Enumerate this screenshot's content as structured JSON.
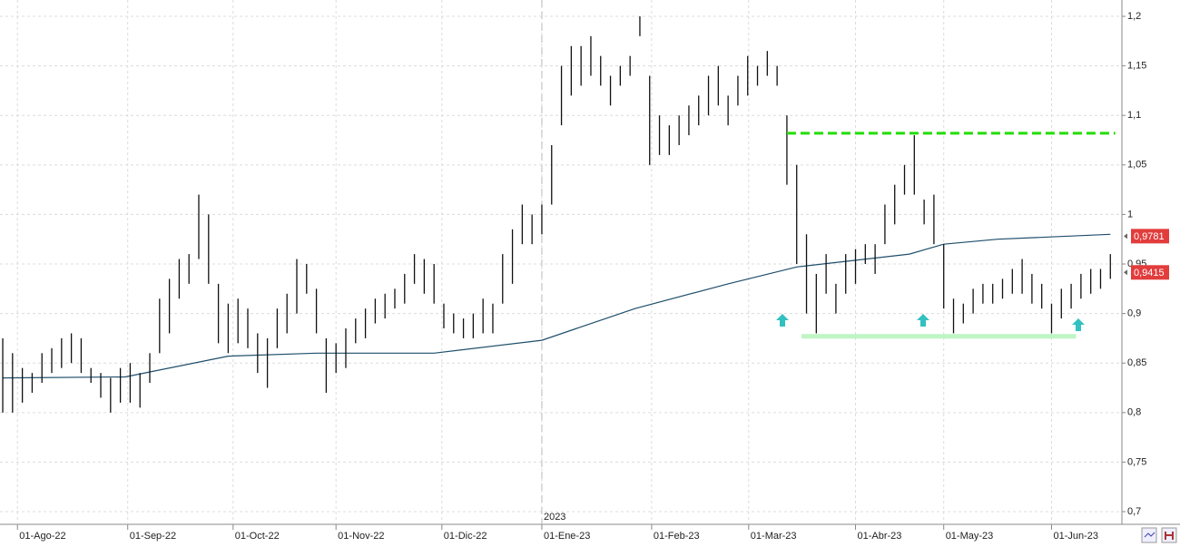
{
  "chart_data": {
    "type": "ohlc",
    "xlim": [
      -0.56,
      227.8
    ],
    "ylim": [
      0.6872,
      1.2165
    ],
    "yticks": [
      {
        "value": 0.7,
        "label": "0,7"
      },
      {
        "value": 0.75,
        "label": "0,75"
      },
      {
        "value": 0.8,
        "label": "0,8"
      },
      {
        "value": 0.85,
        "label": "0,85"
      },
      {
        "value": 0.9,
        "label": "0,9"
      },
      {
        "value": 0.95,
        "label": "0,95"
      },
      {
        "value": 1,
        "label": "1"
      },
      {
        "value": 1.05,
        "label": "1,05"
      },
      {
        "value": 1.1,
        "label": "1,1"
      },
      {
        "value": 1.15,
        "label": "1,15"
      },
      {
        "value": 1.2,
        "label": "1,2"
      }
    ],
    "xticks": [
      {
        "value": 3,
        "label": "01-Ago-22"
      },
      {
        "value": 25.5,
        "label": "01-Sep-22"
      },
      {
        "value": 47,
        "label": "01-Oct-22"
      },
      {
        "value": 68,
        "label": "01-Nov-22"
      },
      {
        "value": 89.6,
        "label": "01-Dic-22"
      },
      {
        "value": 110,
        "label": "01-Ene-23"
      },
      {
        "value": 132.4,
        "label": "01-Feb-23"
      },
      {
        "value": 152.2,
        "label": "01-Mar-23"
      },
      {
        "value": 174,
        "label": "01-Abr-23"
      },
      {
        "value": 192,
        "label": "01-May-23"
      },
      {
        "value": 214,
        "label": "01-Jun-23"
      }
    ],
    "year_marker": {
      "value": 110,
      "label": "2023"
    },
    "grid": true,
    "bar_color": "#111111",
    "x": [
      0,
      2,
      4,
      6,
      8,
      10,
      12,
      14,
      16,
      18,
      20,
      22,
      24,
      26,
      28,
      30,
      32,
      34,
      36,
      38,
      40,
      42,
      44,
      46,
      48,
      50,
      52,
      54,
      56,
      58,
      60,
      62,
      64,
      66,
      68,
      70,
      72,
      74,
      76,
      78,
      80,
      82,
      84,
      86,
      88,
      90,
      92,
      94,
      96,
      98,
      100,
      102,
      104,
      106,
      108,
      110,
      112,
      114,
      116,
      118,
      120,
      122,
      124,
      126,
      128,
      130,
      132,
      134,
      136,
      138,
      140,
      142,
      144,
      146,
      148,
      150,
      152,
      154,
      156,
      158,
      160,
      162,
      164,
      166,
      168,
      170,
      172,
      174,
      176,
      178,
      180,
      182,
      184,
      186,
      188,
      190,
      192,
      194,
      196,
      198,
      200,
      202,
      204,
      206,
      208,
      210,
      212,
      214,
      216,
      218,
      220,
      222,
      224,
      226
    ],
    "high": [
      0.875,
      0.86,
      0.845,
      0.84,
      0.86,
      0.865,
      0.875,
      0.88,
      0.875,
      0.845,
      0.84,
      0.835,
      0.845,
      0.85,
      0.84,
      0.86,
      0.915,
      0.935,
      0.955,
      0.96,
      1.02,
      1.0,
      0.93,
      0.91,
      0.915,
      0.905,
      0.88,
      0.875,
      0.905,
      0.92,
      0.955,
      0.95,
      0.925,
      0.875,
      0.87,
      0.885,
      0.895,
      0.905,
      0.915,
      0.92,
      0.925,
      0.94,
      0.96,
      0.955,
      0.95,
      0.91,
      0.9,
      0.895,
      0.9,
      0.915,
      0.91,
      0.96,
      0.985,
      1.01,
      1.0,
      1.01,
      1.07,
      1.15,
      1.17,
      1.17,
      1.18,
      1.16,
      1.14,
      1.15,
      1.16,
      1.2,
      1.14,
      1.1,
      1.09,
      1.1,
      1.11,
      1.12,
      1.14,
      1.15,
      1.12,
      1.14,
      1.16,
      1.15,
      1.165,
      1.15,
      1.1,
      1.05,
      0.98,
      0.94,
      0.96,
      0.93,
      0.96,
      0.965,
      0.97,
      0.97,
      1.01,
      1.03,
      1.05,
      1.08,
      1.015,
      1.02,
      0.97,
      0.915,
      0.91,
      0.925,
      0.93,
      0.93,
      0.935,
      0.945,
      0.955,
      0.94,
      0.93,
      0.91,
      0.925,
      0.93,
      0.94,
      0.945,
      0.945,
      0.96
    ],
    "low": [
      0.8,
      0.8,
      0.81,
      0.82,
      0.83,
      0.84,
      0.845,
      0.85,
      0.84,
      0.83,
      0.815,
      0.8,
      0.81,
      0.81,
      0.805,
      0.83,
      0.86,
      0.88,
      0.915,
      0.93,
      0.955,
      0.93,
      0.87,
      0.86,
      0.87,
      0.865,
      0.84,
      0.825,
      0.865,
      0.88,
      0.9,
      0.92,
      0.88,
      0.82,
      0.84,
      0.845,
      0.87,
      0.875,
      0.89,
      0.895,
      0.905,
      0.91,
      0.93,
      0.92,
      0.91,
      0.885,
      0.88,
      0.875,
      0.875,
      0.88,
      0.88,
      0.91,
      0.93,
      0.97,
      0.97,
      0.98,
      1.01,
      1.09,
      1.12,
      1.13,
      1.14,
      1.13,
      1.11,
      1.13,
      1.14,
      1.18,
      1.05,
      1.06,
      1.06,
      1.07,
      1.08,
      1.09,
      1.1,
      1.11,
      1.09,
      1.11,
      1.12,
      1.13,
      1.14,
      1.13,
      1.03,
      0.95,
      0.9,
      0.88,
      0.92,
      0.9,
      0.92,
      0.93,
      0.95,
      0.94,
      0.97,
      0.99,
      1.02,
      1.02,
      0.99,
      0.97,
      0.905,
      0.88,
      0.89,
      0.9,
      0.91,
      0.91,
      0.915,
      0.92,
      0.92,
      0.91,
      0.905,
      0.88,
      0.895,
      0.905,
      0.915,
      0.92,
      0.925,
      0.935
    ],
    "moving_average": {
      "color": "#1f4e6b",
      "x": [
        0,
        25,
        46,
        64,
        88,
        110,
        129,
        148,
        162,
        185,
        192,
        203,
        226
      ],
      "values": [
        0.835,
        0.836,
        0.857,
        0.86,
        0.86,
        0.873,
        0.905,
        0.93,
        0.947,
        0.96,
        0.97,
        0.975,
        0.98
      ]
    },
    "resistance": {
      "value": 1.082,
      "x": [
        160,
        227
      ],
      "color": "#22dd00"
    },
    "support": {
      "value": 0.877,
      "x": [
        163,
        219
      ],
      "color": "#bff5c4"
    },
    "last_labels": [
      {
        "value": 0.9781,
        "label": "0,9781"
      },
      {
        "value": 0.9415,
        "label": "0,9415"
      }
    ]
  }
}
